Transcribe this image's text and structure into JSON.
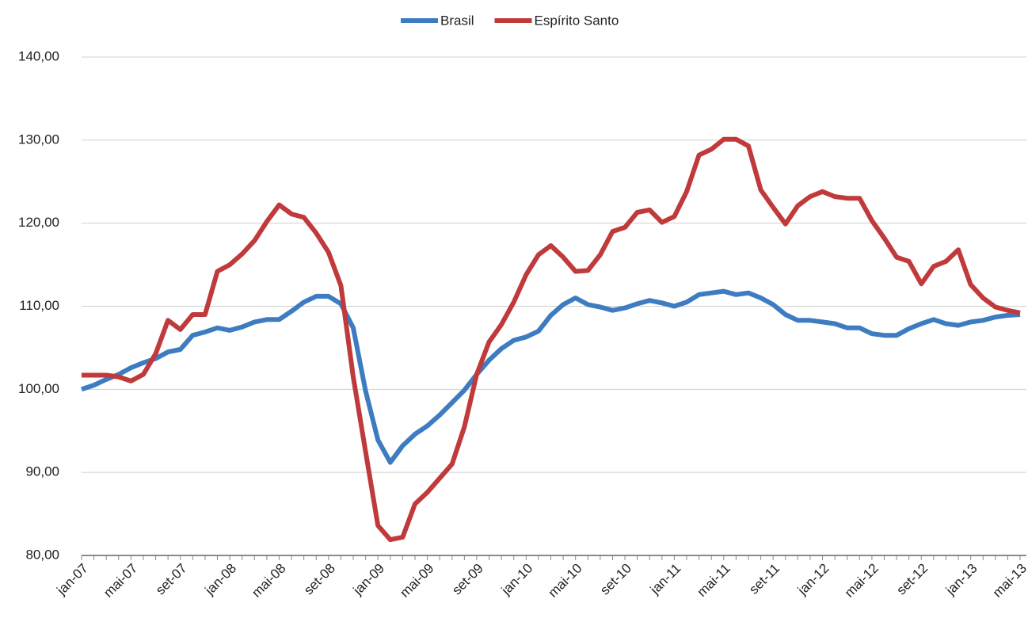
{
  "chart_data": {
    "type": "line",
    "categories": [
      "jan-07",
      null,
      null,
      null,
      "mai-07",
      null,
      null,
      null,
      "set-07",
      null,
      null,
      null,
      "jan-08",
      null,
      null,
      null,
      "mai-08",
      null,
      null,
      null,
      "set-08",
      null,
      null,
      null,
      "jan-09",
      null,
      null,
      null,
      "mai-09",
      null,
      null,
      null,
      "set-09",
      null,
      null,
      null,
      "jan-10",
      null,
      null,
      null,
      "mai-10",
      null,
      null,
      null,
      "set-10",
      null,
      null,
      null,
      "jan-11",
      null,
      null,
      null,
      "mai-11",
      null,
      null,
      null,
      "set-11",
      null,
      null,
      null,
      "jan-12",
      null,
      null,
      null,
      "mai-12",
      null,
      null,
      null,
      "set-12",
      null,
      null,
      null,
      "jan-13",
      null,
      null,
      null,
      "mai-13"
    ],
    "series": [
      {
        "name": "Brasil",
        "color": "#3d7cc1",
        "values": [
          100.0,
          100.5,
          101.2,
          101.8,
          102.6,
          103.2,
          103.7,
          104.5,
          104.8,
          106.5,
          106.9,
          107.4,
          107.1,
          107.5,
          108.1,
          108.4,
          108.4,
          109.4,
          110.5,
          111.2,
          111.2,
          110.3,
          107.4,
          99.8,
          93.9,
          91.2,
          93.2,
          94.6,
          95.6,
          96.9,
          98.4,
          99.9,
          101.8,
          103.5,
          104.9,
          105.9,
          106.3,
          107.0,
          108.9,
          110.2,
          111.0,
          110.2,
          109.9,
          109.5,
          109.8,
          110.3,
          110.7,
          110.4,
          110.0,
          110.5,
          111.4,
          111.6,
          111.8,
          111.4,
          111.6,
          111.0,
          110.2,
          109.0,
          108.3,
          108.3,
          108.1,
          107.9,
          107.4,
          107.4,
          106.7,
          106.5,
          106.5,
          107.3,
          107.9,
          108.4,
          107.9,
          107.7,
          108.1,
          108.3,
          108.7,
          108.9,
          109.0
        ]
      },
      {
        "name": "Espírito Santo",
        "color": "#c0393b",
        "values": [
          101.7,
          101.7,
          101.7,
          101.5,
          101.0,
          101.8,
          104.3,
          108.3,
          107.2,
          109.0,
          109.0,
          114.2,
          115.0,
          116.3,
          117.9,
          120.2,
          122.2,
          121.1,
          120.7,
          118.8,
          116.5,
          112.5,
          101.5,
          92.5,
          83.6,
          81.9,
          82.2,
          86.2,
          87.6,
          89.3,
          91.0,
          95.5,
          101.8,
          105.7,
          107.8,
          110.5,
          113.8,
          116.2,
          117.3,
          115.9,
          114.2,
          114.3,
          116.2,
          119.0,
          119.5,
          121.3,
          121.6,
          120.1,
          120.8,
          123.8,
          128.2,
          128.9,
          130.1,
          130.1,
          129.3,
          124.0,
          121.9,
          119.9,
          122.1,
          123.2,
          123.8,
          123.2,
          123.0,
          123.0,
          120.3,
          118.2,
          115.9,
          115.4,
          112.7,
          114.8,
          115.4,
          116.8,
          112.6,
          111.0,
          109.9,
          109.5,
          109.2
        ]
      }
    ],
    "ylim": [
      80,
      140
    ],
    "yticks": [
      {
        "value": 80,
        "label": "80,00"
      },
      {
        "value": 90,
        "label": "90,00"
      },
      {
        "value": 100,
        "label": "100,00"
      },
      {
        "value": 110,
        "label": "110,00"
      },
      {
        "value": 120,
        "label": "120,00"
      },
      {
        "value": 130,
        "label": "130,00"
      },
      {
        "value": 140,
        "label": "140,00"
      }
    ],
    "grid": true,
    "legend": "top"
  }
}
